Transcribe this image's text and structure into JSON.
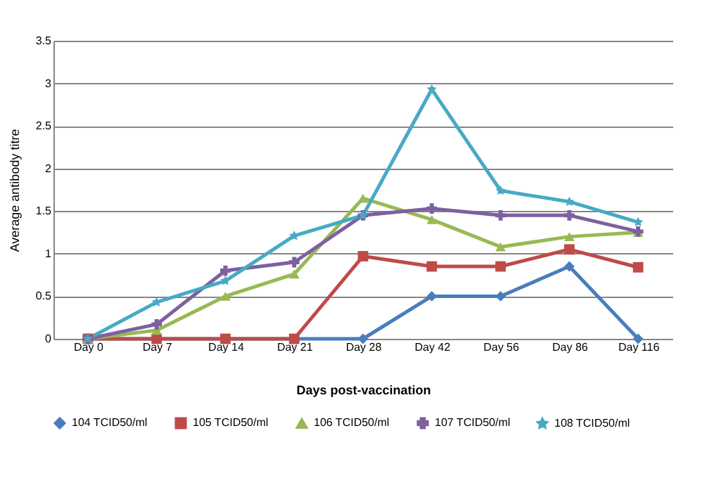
{
  "chart_data": {
    "type": "line",
    "xlabel": "Days post-vaccination",
    "ylabel": "Average antibody titre",
    "categories": [
      "Day 0",
      "Day 7",
      "Day 14",
      "Day 21",
      "Day 28",
      "Day 42",
      "Day 56",
      "Day 86",
      "Day 116"
    ],
    "ylim": [
      0,
      3.5
    ],
    "yticks": [
      0,
      0.5,
      1,
      1.5,
      2,
      2.5,
      3,
      3.5
    ],
    "grid": "y",
    "legend": "bottom",
    "line_style": "solid",
    "series": [
      {
        "name": "104 TCID50/ml",
        "color": "#4a7ebb",
        "marker": "diamond",
        "values": [
          0,
          0,
          0,
          0,
          0,
          0.5,
          0.5,
          0.85,
          0
        ]
      },
      {
        "name": "105 TCID50/ml",
        "color": "#be4b48",
        "marker": "square",
        "values": [
          0,
          0,
          0,
          0,
          0.97,
          0.85,
          0.85,
          1.05,
          0.84
        ]
      },
      {
        "name": "106 TCID50/ml",
        "color": "#98b954",
        "marker": "triangle",
        "values": [
          0,
          0.1,
          0.5,
          0.76,
          1.65,
          1.4,
          1.08,
          1.2,
          1.25
        ]
      },
      {
        "name": "107 TCID50/ml",
        "color": "#7d60a0",
        "marker": "cross",
        "values": [
          0,
          0.17,
          0.8,
          0.9,
          1.45,
          1.53,
          1.45,
          1.45,
          1.26
        ]
      },
      {
        "name": "108 TCID50/ml",
        "color": "#46aac5",
        "marker": "star",
        "values": [
          0,
          0.43,
          0.68,
          1.21,
          1.45,
          2.93,
          1.74,
          1.61,
          1.37
        ]
      }
    ]
  }
}
